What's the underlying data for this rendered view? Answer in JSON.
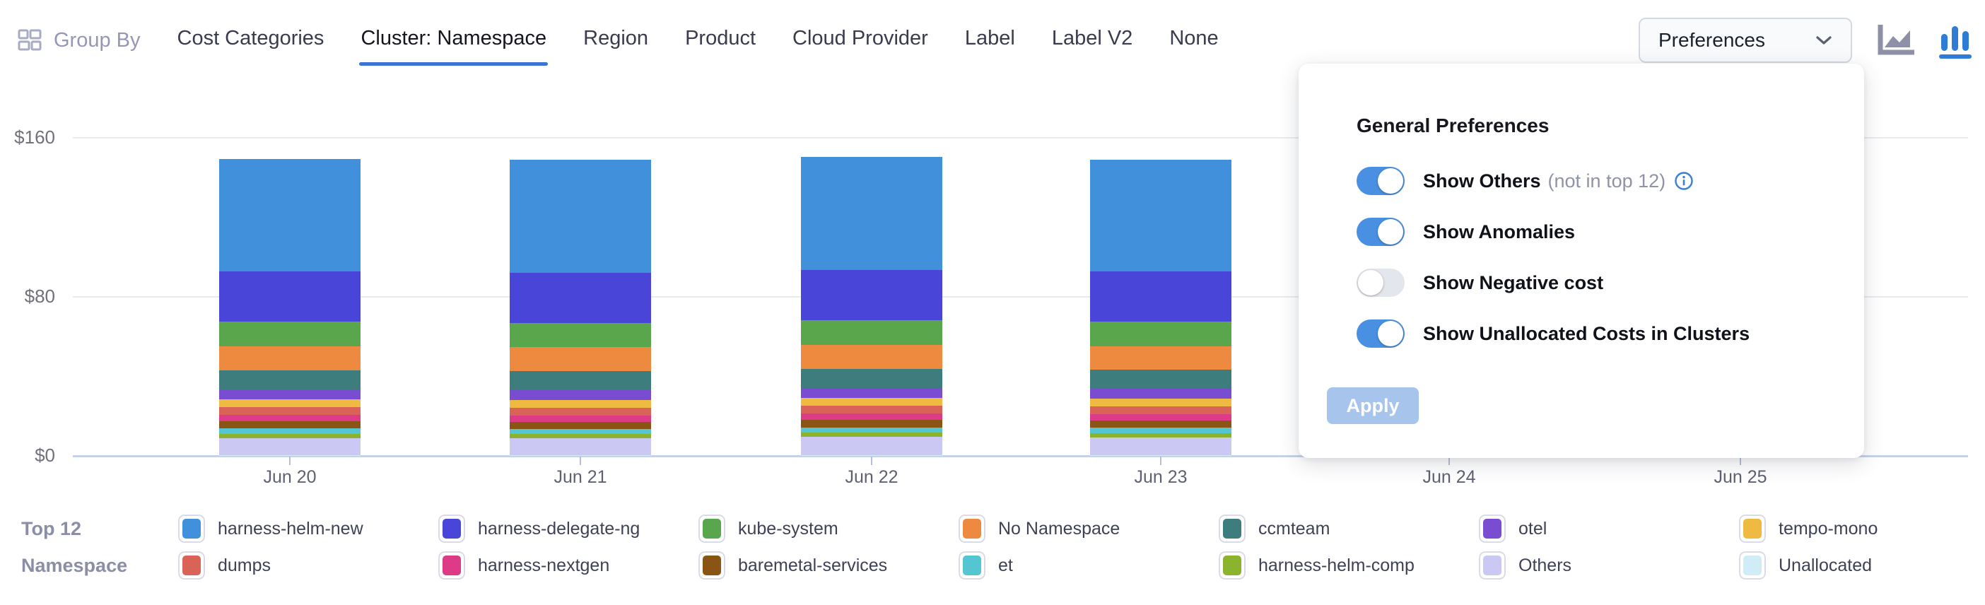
{
  "header": {
    "group_by_label": "Group By",
    "tabs": [
      {
        "label": "Cost Categories",
        "selected": false
      },
      {
        "label": "Cluster: Namespace",
        "selected": true
      },
      {
        "label": "Region",
        "selected": false
      },
      {
        "label": "Product",
        "selected": false
      },
      {
        "label": "Cloud Provider",
        "selected": false
      },
      {
        "label": "Label",
        "selected": false
      },
      {
        "label": "Label V2",
        "selected": false
      },
      {
        "label": "None",
        "selected": false
      }
    ],
    "preferences_label": "Preferences",
    "chart_type_toggle": {
      "area_chart_selected": false,
      "bar_chart_selected": true
    }
  },
  "preferences_panel": {
    "title": "General Preferences",
    "toggles": [
      {
        "label": "Show Others",
        "suffix": "(not in top 12)",
        "info_icon": true,
        "on": true
      },
      {
        "label": "Show Anomalies",
        "suffix": "",
        "info_icon": false,
        "on": true
      },
      {
        "label": "Show Negative cost",
        "suffix": "",
        "info_icon": false,
        "on": false
      },
      {
        "label": "Show Unallocated Costs in Clusters",
        "suffix": "",
        "info_icon": false,
        "on": true
      }
    ],
    "apply_label": "Apply"
  },
  "legend": {
    "title_top": "Top 12",
    "title_bottom": "Namespace"
  },
  "colors": {
    "accent_blue": "#3b74d2",
    "toggle_on": "#4a90e2",
    "apply_disabled": "#a6c4ec",
    "axis_line": "#c7d1e9",
    "gridline": "#e9ebf1"
  },
  "chart_data": {
    "type": "bar",
    "stacked": true,
    "title": "",
    "xlabel": "",
    "ylabel": "",
    "unit": "USD",
    "ylim": [
      0,
      160
    ],
    "grid": true,
    "legend_position": "bottom",
    "y_ticks": [
      {
        "label": "$0",
        "value": 0
      },
      {
        "label": "$80",
        "value": 80
      },
      {
        "label": "$160",
        "value": 160
      }
    ],
    "x_labels": [
      "Jun 20",
      "Jun 21",
      "Jun 22",
      "Jun 23",
      "Jun 24",
      "Jun 25"
    ],
    "series": [
      {
        "name": "harness-helm-new",
        "color": "#4090db",
        "values": [
          56.5,
          56.8,
          56.9,
          56.4,
          null,
          null
        ]
      },
      {
        "name": "harness-delegate-ng",
        "color": "#4945d8",
        "values": [
          25.2,
          25.0,
          25.4,
          25.1,
          null,
          null
        ]
      },
      {
        "name": "kube-system",
        "color": "#5aa64d",
        "values": [
          12.4,
          12.3,
          12.5,
          12.4,
          null,
          null
        ]
      },
      {
        "name": "No Namespace",
        "color": "#ee8a40",
        "values": [
          12.1,
          12.0,
          12.1,
          12.0,
          null,
          null
        ]
      },
      {
        "name": "ccmteam",
        "color": "#3d7d7d",
        "values": [
          9.6,
          9.5,
          9.6,
          9.5,
          null,
          null
        ]
      },
      {
        "name": "otel",
        "color": "#7a4cd2",
        "values": [
          5.0,
          5.0,
          5.0,
          5.0,
          null,
          null
        ]
      },
      {
        "name": "tempo-mono",
        "color": "#eeba41",
        "values": [
          3.9,
          3.9,
          3.9,
          3.9,
          null,
          null
        ]
      },
      {
        "name": "dumps",
        "color": "#d96357",
        "values": [
          3.9,
          3.9,
          3.9,
          3.9,
          null,
          null
        ]
      },
      {
        "name": "harness-nextgen",
        "color": "#dd3a88",
        "values": [
          3.2,
          3.2,
          3.2,
          3.2,
          null,
          null
        ]
      },
      {
        "name": "baremetal-services",
        "color": "#8a5414",
        "values": [
          3.6,
          3.5,
          3.6,
          3.5,
          null,
          null
        ]
      },
      {
        "name": "et",
        "color": "#53c6d1",
        "values": [
          2.8,
          2.8,
          2.8,
          2.8,
          null,
          null
        ]
      },
      {
        "name": "harness-helm-comp",
        "color": "#8bb32d",
        "values": [
          2.1,
          2.1,
          2.1,
          2.1,
          null,
          null
        ]
      },
      {
        "name": "Others",
        "color": "#cbc9f3",
        "values": [
          8.5,
          8.3,
          9.0,
          8.8,
          null,
          null
        ]
      },
      {
        "name": "Unallocated",
        "color": "#cfecf7",
        "values": [
          0.5,
          0.5,
          0.5,
          0.5,
          null,
          null
        ]
      }
    ]
  }
}
